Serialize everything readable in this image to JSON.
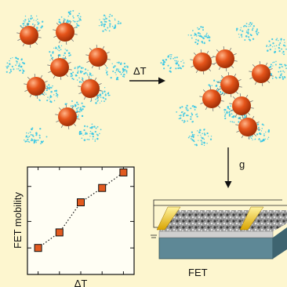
{
  "process": {
    "heat_label": "ΔT",
    "step_label": "g"
  },
  "chart_data": {
    "type": "scatter",
    "xlabel": "ΔT",
    "ylabel": "FET mobility",
    "x": [
      1,
      2,
      3,
      4,
      5
    ],
    "values": [
      1,
      1.5,
      3.3,
      4.8,
      7.2
    ],
    "ylim": [
      0.5,
      8.3
    ],
    "yscale": "log",
    "marker_color": "#e25a1f",
    "line_style": "dotted"
  },
  "device": {
    "label": "FET"
  },
  "colors": {
    "background": "#fdf6cf",
    "nanoparticle": "#e0541c",
    "ligand": "#2ec4e6",
    "electrode": "#f0c419",
    "substrate": "#5a8390"
  }
}
